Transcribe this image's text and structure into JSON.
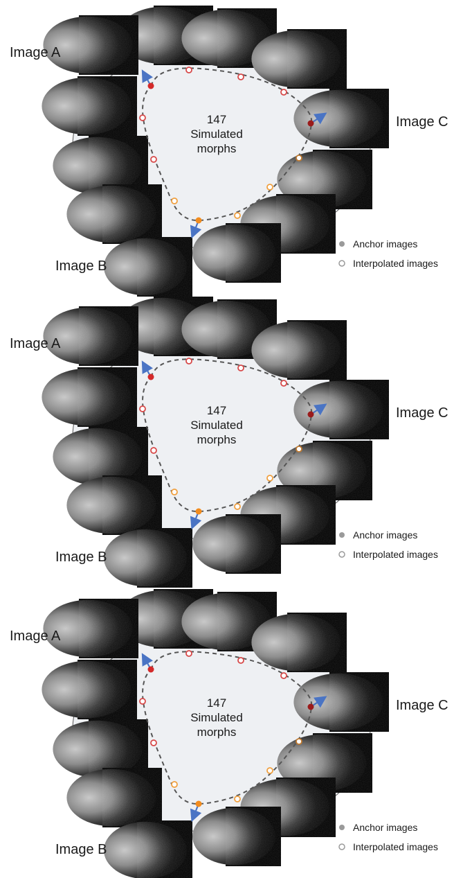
{
  "panels": [
    {
      "center_label": [
        "147",
        "Simulated",
        "morphs"
      ],
      "anchor_labels": {
        "a": "Image A",
        "b": "Image B",
        "c": "Image C"
      },
      "legend": {
        "anchor": "Anchor images",
        "interpolated": "Interpolated images"
      }
    },
    {
      "center_label": [
        "147",
        "Simulated",
        "morphs"
      ],
      "anchor_labels": {
        "a": "Image A",
        "b": "Image B",
        "c": "Image C"
      },
      "legend": {
        "anchor": "Anchor images",
        "interpolated": "Interpolated images"
      }
    },
    {
      "center_label": [
        "147",
        "Simulated",
        "morphs"
      ],
      "anchor_labels": {
        "a": "Image A",
        "b": "Image B",
        "c": "Image C"
      },
      "legend": {
        "anchor": "Anchor images",
        "interpolated": "Interpolated images"
      }
    }
  ],
  "colors": {
    "anchor_a": "#d42a2a",
    "anchor_b": "#f28c1e",
    "anchor_c": "#9a1b1b",
    "arrow": "#4a74c4",
    "path": "#555555",
    "ellipse_fill": "#eef0f3",
    "ellipse_stroke": "#555555",
    "legend_dot": "#9a9a9a"
  }
}
